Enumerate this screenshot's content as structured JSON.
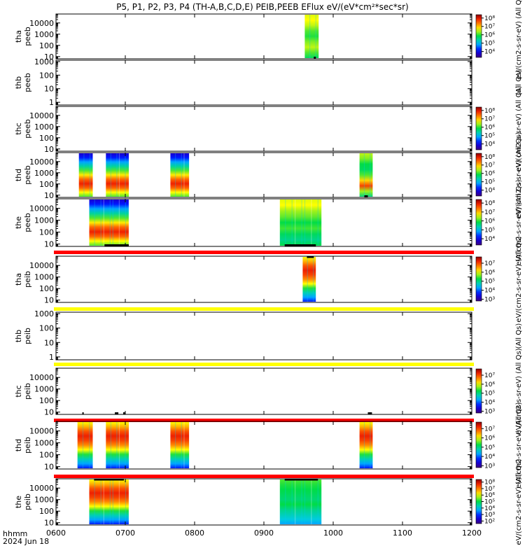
{
  "chart_data": {
    "type": "heatmap",
    "title": "P5, P1, P2, P3, P4 (TH-A,B,C,D,E) PEIB,PEEB EFlux eV/(eV*cm²*sec*sr)",
    "x_axis": {
      "label_line1": "hhmm",
      "label_line2": "2024 Jun 18",
      "range_hours": [
        6,
        12
      ],
      "ticks": [
        {
          "v": 6,
          "label": "0600"
        },
        {
          "v": 7,
          "label": "0700"
        },
        {
          "v": 8,
          "label": "0800"
        },
        {
          "v": 9,
          "label": "0900"
        },
        {
          "v": 10,
          "label": "1000"
        },
        {
          "v": 11,
          "label": "1100"
        },
        {
          "v": 12,
          "label": "1200"
        }
      ]
    },
    "panels": [
      {
        "id": "tha-peeb",
        "probe": "tha",
        "product": "peeb",
        "yticks": [
          {
            "v": 10,
            "label": "10"
          },
          {
            "v": 100,
            "label": "100"
          },
          {
            "v": 1000,
            "label": "1000"
          },
          {
            "v": 10000,
            "label": "10000"
          }
        ],
        "yrange_log": [
          0.8,
          4.8
        ],
        "colorbar": {
          "ticks": [
            {
              "p": 4,
              "label": "10⁴"
            },
            {
              "p": 5,
              "label": "10⁵"
            },
            {
              "p": 6,
              "label": "10⁶"
            },
            {
              "p": 7,
              "label": "10⁷"
            },
            {
              "p": 8,
              "label": "10⁸"
            }
          ],
          "range": [
            3.3,
            8.4
          ],
          "unit": "eV/(cm2-s-sr-eV) (All Qs)"
        },
        "blocks": [
          {
            "start": 9.59,
            "end": 9.79,
            "style": "hot-high"
          }
        ],
        "above_marks": [],
        "below_marks": [
          {
            "start": 9.72,
            "end": 9.75
          }
        ]
      },
      {
        "id": "thb-peeb",
        "probe": "thb",
        "product": "peeb",
        "yticks": [
          {
            "v": 1,
            "label": "1"
          },
          {
            "v": 10,
            "label": "10"
          },
          {
            "v": 100,
            "label": "100"
          },
          {
            "v": 1000,
            "label": "1000"
          }
        ],
        "yrange_log": [
          -0.2,
          3.1
        ],
        "colorbar": null,
        "blocks": [],
        "above_marks": [],
        "below_marks": [],
        "side_text": "(All Qs)"
      },
      {
        "id": "thc-peeb",
        "probe": "thc",
        "product": "peeb",
        "yticks": [
          {
            "v": 10,
            "label": "10"
          },
          {
            "v": 100,
            "label": "100"
          },
          {
            "v": 1000,
            "label": "1000"
          },
          {
            "v": 10000,
            "label": "10000"
          }
        ],
        "yrange_log": [
          0.8,
          4.8
        ],
        "colorbar": {
          "ticks": [
            {
              "p": 4,
              "label": "10⁴"
            },
            {
              "p": 5,
              "label": "10⁵"
            },
            {
              "p": 6,
              "label": "10⁶"
            },
            {
              "p": 7,
              "label": "10⁷"
            },
            {
              "p": 8,
              "label": "10⁸"
            }
          ],
          "range": [
            3.3,
            8.4
          ],
          "unit": "eV/(cm2-s-sr-eV) (All Qs)"
        },
        "blocks": [],
        "above_marks": [],
        "below_marks": []
      },
      {
        "id": "thd-peeb",
        "probe": "thd",
        "product": "peeb",
        "yticks": [
          {
            "v": 10,
            "label": "10"
          },
          {
            "v": 100,
            "label": "100"
          },
          {
            "v": 1000,
            "label": "1000"
          },
          {
            "v": 10000,
            "label": "10000"
          }
        ],
        "yrange_log": [
          0.8,
          4.8
        ],
        "colorbar": {
          "ticks": [
            {
              "p": 4,
              "label": "10⁴"
            },
            {
              "p": 5,
              "label": "10⁵"
            },
            {
              "p": 6,
              "label": "10⁶"
            },
            {
              "p": 7,
              "label": "10⁷"
            },
            {
              "p": 8,
              "label": "10⁸"
            }
          ],
          "range": [
            3.3,
            8.4
          ],
          "unit": "eV/(cm2-s-sr-eV) (All Qs)"
        },
        "blocks": [
          {
            "start": 6.33,
            "end": 6.53,
            "style": "electron"
          },
          {
            "start": 6.72,
            "end": 7.05,
            "style": "electron"
          },
          {
            "start": 7.65,
            "end": 7.92,
            "style": "electron"
          },
          {
            "start": 10.38,
            "end": 10.57,
            "style": "spike"
          }
        ],
        "above_marks": [],
        "below_marks": [
          {
            "start": 10.45,
            "end": 10.5
          }
        ]
      },
      {
        "id": "the-peeb",
        "probe": "the",
        "product": "peeb",
        "yticks": [
          {
            "v": 10,
            "label": "10"
          },
          {
            "v": 100,
            "label": "100"
          },
          {
            "v": 1000,
            "label": "1000"
          },
          {
            "v": 10000,
            "label": "10000"
          }
        ],
        "yrange_log": [
          0.8,
          4.8
        ],
        "colorbar": {
          "ticks": [
            {
              "p": 4,
              "label": "10⁴"
            },
            {
              "p": 5,
              "label": "10⁵"
            },
            {
              "p": 6,
              "label": "10⁶"
            },
            {
              "p": 7,
              "label": "10⁷"
            },
            {
              "p": 8,
              "label": "10⁸"
            }
          ],
          "range": [
            3.3,
            8.4
          ],
          "unit": "eV/(cm2-s-sr-eV) (All Qs)"
        },
        "blocks": [
          {
            "start": 6.48,
            "end": 7.05,
            "style": "electron"
          },
          {
            "start": 9.23,
            "end": 9.83,
            "style": "patchy"
          }
        ],
        "above_marks": [],
        "below_marks": [
          {
            "start": 6.7,
            "end": 7.05
          },
          {
            "start": 9.3,
            "end": 9.75
          }
        ]
      },
      {
        "id": "tha-peib",
        "probe": "tha",
        "product": "peib",
        "yticks": [
          {
            "v": 10,
            "label": "10"
          },
          {
            "v": 100,
            "label": "100"
          },
          {
            "v": 1000,
            "label": "1000"
          },
          {
            "v": 10000,
            "label": "10000"
          }
        ],
        "yrange_log": [
          0.8,
          4.8
        ],
        "colorbar": {
          "ticks": [
            {
              "p": 3,
              "label": "10³"
            },
            {
              "p": 4,
              "label": "10⁴"
            },
            {
              "p": 5,
              "label": "10⁵"
            },
            {
              "p": 6,
              "label": "10⁶"
            },
            {
              "p": 7,
              "label": "10⁷"
            }
          ],
          "range": [
            2.8,
            7.7
          ],
          "unit": "eV/(cm2-s-sr-eV) (All Qs)"
        },
        "blocks": [
          {
            "start": 9.56,
            "end": 9.75,
            "style": "ion"
          }
        ],
        "above_marks": [
          {
            "start": 9.62,
            "end": 9.72
          }
        ],
        "below_marks": []
      },
      {
        "id": "thb-peib",
        "probe": "thb",
        "product": "peib",
        "yticks": [
          {
            "v": 1,
            "label": "1"
          },
          {
            "v": 10,
            "label": "10"
          },
          {
            "v": 100,
            "label": "100"
          },
          {
            "v": 1000,
            "label": "1000"
          }
        ],
        "yrange_log": [
          -0.2,
          3.1
        ],
        "colorbar": null,
        "blocks": [],
        "above_marks": [],
        "below_marks": [],
        "side_text": "(All Qs)"
      },
      {
        "id": "thc-peib",
        "probe": "thc",
        "product": "peib",
        "yticks": [
          {
            "v": 10,
            "label": "10"
          },
          {
            "v": 100,
            "label": "100"
          },
          {
            "v": 1000,
            "label": "1000"
          },
          {
            "v": 10000,
            "label": "10000"
          }
        ],
        "yrange_log": [
          0.8,
          4.8
        ],
        "colorbar": {
          "ticks": [
            {
              "p": 3,
              "label": "10³"
            },
            {
              "p": 4,
              "label": "10⁴"
            },
            {
              "p": 5,
              "label": "10⁵"
            },
            {
              "p": 6,
              "label": "10⁶"
            },
            {
              "p": 7,
              "label": "10⁷"
            }
          ],
          "range": [
            2.8,
            7.7
          ],
          "unit": "eV/(cm2-s-sr-eV) (All Qs)"
        },
        "blocks": [],
        "above_marks": [],
        "below_marks": [
          {
            "start": 6.38,
            "end": 6.4
          },
          {
            "start": 6.85,
            "end": 6.9
          },
          {
            "start": 6.97,
            "end": 7.0
          },
          {
            "start": 10.5,
            "end": 10.56
          }
        ]
      },
      {
        "id": "thd-peib",
        "probe": "thd",
        "product": "peib",
        "yticks": [
          {
            "v": 10,
            "label": "10"
          },
          {
            "v": 100,
            "label": "100"
          },
          {
            "v": 1000,
            "label": "1000"
          },
          {
            "v": 10000,
            "label": "10000"
          }
        ],
        "yrange_log": [
          0.8,
          4.8
        ],
        "colorbar": {
          "ticks": [
            {
              "p": 3,
              "label": "10³"
            },
            {
              "p": 4,
              "label": "10⁴"
            },
            {
              "p": 5,
              "label": "10⁵"
            },
            {
              "p": 6,
              "label": "10⁶"
            },
            {
              "p": 7,
              "label": "10⁷"
            }
          ],
          "range": [
            2.8,
            7.7
          ],
          "unit": "eV/(cm2-s-sr-eV) (All Qs)"
        },
        "blocks": [
          {
            "start": 6.31,
            "end": 6.53,
            "style": "ion"
          },
          {
            "start": 6.72,
            "end": 7.05,
            "style": "ion"
          },
          {
            "start": 7.65,
            "end": 7.92,
            "style": "ion"
          },
          {
            "start": 10.38,
            "end": 10.57,
            "style": "ion"
          }
        ],
        "above_marks": [],
        "below_marks": []
      },
      {
        "id": "the-peib",
        "probe": "the",
        "product": "peib",
        "yticks": [
          {
            "v": 10,
            "label": "10"
          },
          {
            "v": 100,
            "label": "100"
          },
          {
            "v": 1000,
            "label": "1000"
          },
          {
            "v": 10000,
            "label": "10000"
          }
        ],
        "yrange_log": [
          0.8,
          4.8
        ],
        "colorbar": {
          "ticks": [
            {
              "p": 2,
              "label": "10²"
            },
            {
              "p": 3,
              "label": "10³"
            },
            {
              "p": 4,
              "label": "10⁴"
            },
            {
              "p": 5,
              "label": "10⁵"
            },
            {
              "p": 6,
              "label": "10⁶"
            },
            {
              "p": 7,
              "label": "10⁷"
            },
            {
              "p": 8,
              "label": "10⁸"
            }
          ],
          "range": [
            1.6,
            8.4
          ],
          "unit": "eV/(cm2-s-sr-eV) (All Qs)"
        },
        "blocks": [
          {
            "start": 6.48,
            "end": 7.05,
            "style": "ion"
          },
          {
            "start": 9.23,
            "end": 9.83,
            "style": "patchy-ion"
          }
        ],
        "above_marks": [
          {
            "start": 6.55,
            "end": 6.98
          },
          {
            "start": 9.3,
            "end": 9.78
          }
        ],
        "below_marks": []
      }
    ],
    "separator_bars": [
      {
        "after_panel": "the-peeb",
        "color": "#ff0000"
      },
      {
        "after_panel": "tha-peib",
        "color": "#ffff00"
      },
      {
        "after_panel": "thb-peib",
        "color": "#ffff00"
      },
      {
        "after_panel": "thc-peib",
        "color": "#ff0000"
      },
      {
        "after_panel": "thd-peib",
        "color": "#ff0000"
      }
    ]
  }
}
